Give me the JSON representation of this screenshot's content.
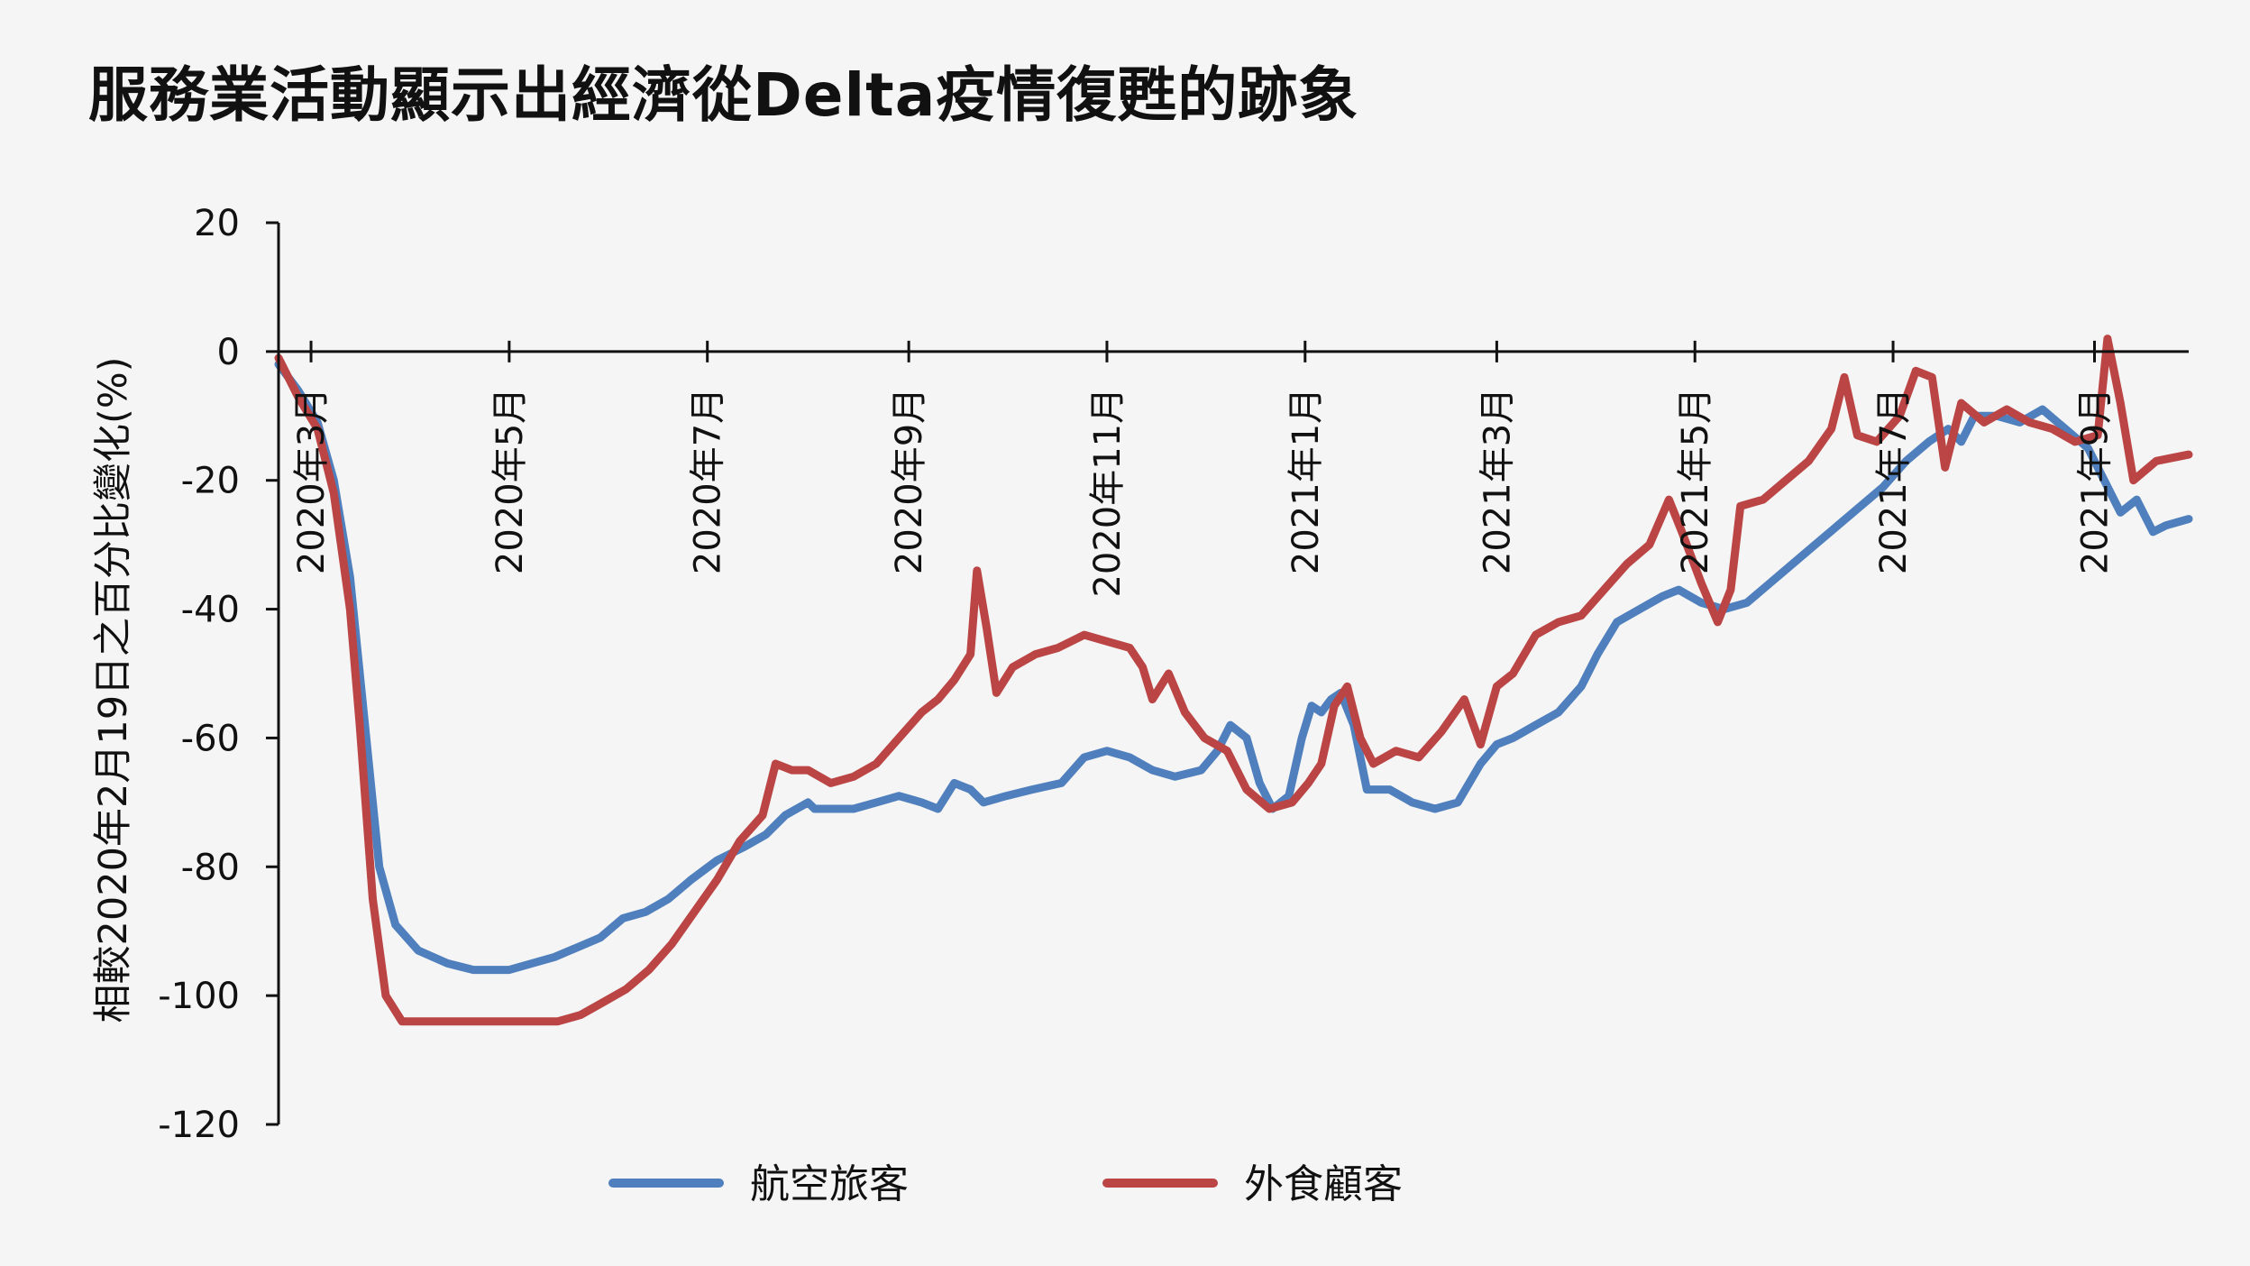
{
  "chart_data": {
    "type": "line",
    "title": "服務業活動顯示出經濟從Delta疫情復甦的跡象",
    "ylabel": "相較2020年2月19日之百分比變化(%)",
    "xlabel": "",
    "ylim": [
      -120,
      20
    ],
    "yticks": [
      20,
      0,
      -20,
      -40,
      -60,
      -80,
      -100,
      -120
    ],
    "xlim": [
      "2020-02-20",
      "2021-09-30"
    ],
    "xticks": [
      {
        "date": "2020-03-01",
        "label": "2020年3月"
      },
      {
        "date": "2020-05-01",
        "label": "2020年5月"
      },
      {
        "date": "2020-07-01",
        "label": "2020年7月"
      },
      {
        "date": "2020-09-01",
        "label": "2020年9月"
      },
      {
        "date": "2020-11-01",
        "label": "2020年11月"
      },
      {
        "date": "2021-01-01",
        "label": "2021年1月"
      },
      {
        "date": "2021-03-01",
        "label": "2021年3月"
      },
      {
        "date": "2021-05-01",
        "label": "2021年5月"
      },
      {
        "date": "2021-07-01",
        "label": "2021年7月"
      },
      {
        "date": "2021-09-01",
        "label": "2021年9月"
      }
    ],
    "grid": false,
    "legend": "bottom",
    "series": [
      {
        "name": "航空旅客",
        "color": "#4f7fbd",
        "points": [
          [
            "2020-02-20",
            -2
          ],
          [
            "2020-02-26",
            -6
          ],
          [
            "2020-03-03",
            -11
          ],
          [
            "2020-03-08",
            -20
          ],
          [
            "2020-03-13",
            -35
          ],
          [
            "2020-03-18",
            -60
          ],
          [
            "2020-03-22",
            -80
          ],
          [
            "2020-03-27",
            -89
          ],
          [
            "2020-04-03",
            -93
          ],
          [
            "2020-04-12",
            -95
          ],
          [
            "2020-04-20",
            -96
          ],
          [
            "2020-05-01",
            -96
          ],
          [
            "2020-05-15",
            -94
          ],
          [
            "2020-05-29",
            -91
          ],
          [
            "2020-06-05",
            -88
          ],
          [
            "2020-06-12",
            -87
          ],
          [
            "2020-06-19",
            -85
          ],
          [
            "2020-06-26",
            -82
          ],
          [
            "2020-07-04",
            -79
          ],
          [
            "2020-07-12",
            -77
          ],
          [
            "2020-07-19",
            -75
          ],
          [
            "2020-07-25",
            -72
          ],
          [
            "2020-08-01",
            -70
          ],
          [
            "2020-08-03",
            -71
          ],
          [
            "2020-08-08",
            -71
          ],
          [
            "2020-08-15",
            -71
          ],
          [
            "2020-08-22",
            -70
          ],
          [
            "2020-08-29",
            -69
          ],
          [
            "2020-09-05",
            -70
          ],
          [
            "2020-09-10",
            -71
          ],
          [
            "2020-09-15",
            -67
          ],
          [
            "2020-09-20",
            -68
          ],
          [
            "2020-09-24",
            -70
          ],
          [
            "2020-10-01",
            -69
          ],
          [
            "2020-10-09",
            -68
          ],
          [
            "2020-10-18",
            -67
          ],
          [
            "2020-10-25",
            -63
          ],
          [
            "2020-11-01",
            -62
          ],
          [
            "2020-11-08",
            -63
          ],
          [
            "2020-11-15",
            -65
          ],
          [
            "2020-11-22",
            -66
          ],
          [
            "2020-11-30",
            -65
          ],
          [
            "2020-12-05",
            -62
          ],
          [
            "2020-12-09",
            -58
          ],
          [
            "2020-12-14",
            -60
          ],
          [
            "2020-12-18",
            -67
          ],
          [
            "2020-12-22",
            -71
          ],
          [
            "2020-12-27",
            -69
          ],
          [
            "2020-12-31",
            -60
          ],
          [
            "2021-01-03",
            -55
          ],
          [
            "2021-01-06",
            -56
          ],
          [
            "2021-01-09",
            -54
          ],
          [
            "2021-01-12",
            -53
          ],
          [
            "2021-01-16",
            -58
          ],
          [
            "2021-01-20",
            -68
          ],
          [
            "2021-01-27",
            -68
          ],
          [
            "2021-02-03",
            -70
          ],
          [
            "2021-02-10",
            -71
          ],
          [
            "2021-02-17",
            -70
          ],
          [
            "2021-02-24",
            -64
          ],
          [
            "2021-03-01",
            -61
          ],
          [
            "2021-03-06",
            -60
          ],
          [
            "2021-03-13",
            -58
          ],
          [
            "2021-03-20",
            -56
          ],
          [
            "2021-03-27",
            -52
          ],
          [
            "2021-04-01",
            -47
          ],
          [
            "2021-04-07",
            -42
          ],
          [
            "2021-04-14",
            -40
          ],
          [
            "2021-04-21",
            -38
          ],
          [
            "2021-04-26",
            -37
          ],
          [
            "2021-05-03",
            -39
          ],
          [
            "2021-05-10",
            -40
          ],
          [
            "2021-05-17",
            -39
          ],
          [
            "2021-05-24",
            -36
          ],
          [
            "2021-05-31",
            -33
          ],
          [
            "2021-06-07",
            -30
          ],
          [
            "2021-06-14",
            -27
          ],
          [
            "2021-06-21",
            -24
          ],
          [
            "2021-06-28",
            -21
          ],
          [
            "2021-07-05",
            -17
          ],
          [
            "2021-07-12",
            -14
          ],
          [
            "2021-07-18",
            -12
          ],
          [
            "2021-07-22",
            -14
          ],
          [
            "2021-07-26",
            -10
          ],
          [
            "2021-08-02",
            -10
          ],
          [
            "2021-08-09",
            -11
          ],
          [
            "2021-08-16",
            -9
          ],
          [
            "2021-08-23",
            -12
          ],
          [
            "2021-08-30",
            -15
          ],
          [
            "2021-09-04",
            -20
          ],
          [
            "2021-09-09",
            -25
          ],
          [
            "2021-09-14",
            -23
          ],
          [
            "2021-09-19",
            -28
          ],
          [
            "2021-09-23",
            -27
          ],
          [
            "2021-09-30",
            -26
          ]
        ]
      },
      {
        "name": "外食顧客",
        "color": "#bb4444",
        "points": [
          [
            "2020-02-20",
            -1
          ],
          [
            "2020-02-26",
            -7
          ],
          [
            "2020-03-03",
            -12
          ],
          [
            "2020-03-08",
            -22
          ],
          [
            "2020-03-13",
            -40
          ],
          [
            "2020-03-16",
            -58
          ],
          [
            "2020-03-20",
            -85
          ],
          [
            "2020-03-24",
            -100
          ],
          [
            "2020-03-29",
            -104
          ],
          [
            "2020-04-10",
            -104
          ],
          [
            "2020-05-01",
            -104
          ],
          [
            "2020-05-16",
            -104
          ],
          [
            "2020-05-23",
            -103
          ],
          [
            "2020-05-30",
            -101
          ],
          [
            "2020-06-06",
            -99
          ],
          [
            "2020-06-13",
            -96
          ],
          [
            "2020-06-20",
            -92
          ],
          [
            "2020-06-27",
            -87
          ],
          [
            "2020-07-04",
            -82
          ],
          [
            "2020-07-11",
            -76
          ],
          [
            "2020-07-18",
            -72
          ],
          [
            "2020-07-22",
            -64
          ],
          [
            "2020-07-27",
            -65
          ],
          [
            "2020-08-01",
            -65
          ],
          [
            "2020-08-08",
            -67
          ],
          [
            "2020-08-15",
            -66
          ],
          [
            "2020-08-22",
            -64
          ],
          [
            "2020-08-29",
            -60
          ],
          [
            "2020-09-05",
            -56
          ],
          [
            "2020-09-10",
            -54
          ],
          [
            "2020-09-15",
            -51
          ],
          [
            "2020-09-20",
            -47
          ],
          [
            "2020-09-22",
            -34
          ],
          [
            "2020-09-25",
            -43
          ],
          [
            "2020-09-28",
            -53
          ],
          [
            "2020-10-03",
            -49
          ],
          [
            "2020-10-10",
            -47
          ],
          [
            "2020-10-17",
            -46
          ],
          [
            "2020-10-25",
            -44
          ],
          [
            "2020-11-01",
            -45
          ],
          [
            "2020-11-08",
            -46
          ],
          [
            "2020-11-12",
            -49
          ],
          [
            "2020-11-15",
            -54
          ],
          [
            "2020-11-20",
            -50
          ],
          [
            "2020-11-25",
            -56
          ],
          [
            "2020-12-01",
            -60
          ],
          [
            "2020-12-08",
            -62
          ],
          [
            "2020-12-14",
            -68
          ],
          [
            "2020-12-21",
            -71
          ],
          [
            "2020-12-28",
            -70
          ],
          [
            "2021-01-02",
            -67
          ],
          [
            "2021-01-06",
            -64
          ],
          [
            "2021-01-10",
            -55
          ],
          [
            "2021-01-14",
            -52
          ],
          [
            "2021-01-18",
            -60
          ],
          [
            "2021-01-22",
            -64
          ],
          [
            "2021-01-29",
            -62
          ],
          [
            "2021-02-05",
            -63
          ],
          [
            "2021-02-12",
            -59
          ],
          [
            "2021-02-19",
            -54
          ],
          [
            "2021-02-24",
            -61
          ],
          [
            "2021-03-01",
            -52
          ],
          [
            "2021-03-06",
            -50
          ],
          [
            "2021-03-13",
            -44
          ],
          [
            "2021-03-20",
            -42
          ],
          [
            "2021-03-27",
            -41
          ],
          [
            "2021-04-03",
            -37
          ],
          [
            "2021-04-10",
            -33
          ],
          [
            "2021-04-17",
            -30
          ],
          [
            "2021-04-23",
            -23
          ],
          [
            "2021-04-27",
            -28
          ],
          [
            "2021-05-03",
            -36
          ],
          [
            "2021-05-08",
            -42
          ],
          [
            "2021-05-12",
            -37
          ],
          [
            "2021-05-15",
            -24
          ],
          [
            "2021-05-22",
            -23
          ],
          [
            "2021-05-29",
            -20
          ],
          [
            "2021-06-05",
            -17
          ],
          [
            "2021-06-12",
            -12
          ],
          [
            "2021-06-16",
            -4
          ],
          [
            "2021-06-20",
            -13
          ],
          [
            "2021-06-26",
            -14
          ],
          [
            "2021-07-03",
            -10
          ],
          [
            "2021-07-08",
            -3
          ],
          [
            "2021-07-13",
            -4
          ],
          [
            "2021-07-17",
            -18
          ],
          [
            "2021-07-22",
            -8
          ],
          [
            "2021-07-29",
            -11
          ],
          [
            "2021-08-05",
            -9
          ],
          [
            "2021-08-12",
            -11
          ],
          [
            "2021-08-19",
            -12
          ],
          [
            "2021-08-26",
            -14
          ],
          [
            "2021-09-02",
            -13
          ],
          [
            "2021-09-05",
            2
          ],
          [
            "2021-09-09",
            -8
          ],
          [
            "2021-09-13",
            -20
          ],
          [
            "2021-09-20",
            -17
          ],
          [
            "2021-09-30",
            -16
          ]
        ]
      }
    ]
  }
}
